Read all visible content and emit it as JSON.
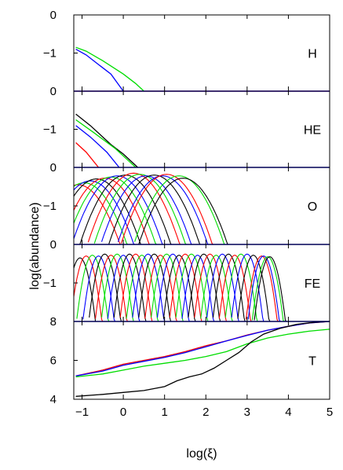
{
  "chart_data": {
    "type": "line",
    "xlabel": "log(ξ)",
    "ylabel": "log(abundance)",
    "xlim": [
      -1.2,
      5
    ],
    "xticks": [
      -1,
      0,
      1,
      2,
      3,
      4,
      5
    ],
    "xtick_labels": [
      "−1",
      "0",
      "1",
      "2",
      "3",
      "4",
      "5"
    ],
    "colors": {
      "red": "#ff0000",
      "green": "#00dd00",
      "blue": "#0000ff",
      "black": "#000000"
    },
    "series_colors": [
      "red",
      "green",
      "blue",
      "black"
    ],
    "panels": [
      {
        "label": "H",
        "ylim": [
          -2,
          0
        ],
        "ytick_labels": [
          {
            "v": 0,
            "t": "0"
          },
          {
            "v": -1,
            "t": "−1"
          }
        ],
        "series": [
          {
            "color": "red",
            "points": [
              [
                -1.2,
                -2.0
              ],
              [
                5,
                -2.0
              ]
            ]
          },
          {
            "color": "green",
            "points": [
              [
                -1.15,
                -0.85
              ],
              [
                -0.9,
                -0.95
              ],
              [
                -0.5,
                -1.2
              ],
              [
                0,
                -1.55
              ],
              [
                0.3,
                -1.8
              ],
              [
                0.5,
                -2.0
              ]
            ]
          },
          {
            "color": "blue",
            "points": [
              [
                -1.15,
                -0.9
              ],
              [
                -0.9,
                -1.05
              ],
              [
                -0.6,
                -1.3
              ],
              [
                -0.3,
                -1.55
              ],
              [
                0,
                -2.0
              ]
            ]
          }
        ]
      },
      {
        "label": "HE",
        "ylim": [
          -2,
          0
        ],
        "ytick_labels": [
          {
            "v": 0,
            "t": "0"
          },
          {
            "v": -1,
            "t": "−1"
          }
        ],
        "series": [
          {
            "color": "black",
            "points": [
              [
                -1.15,
                -0.6
              ],
              [
                -0.8,
                -0.9
              ],
              [
                -0.3,
                -1.4
              ],
              [
                0,
                -1.65
              ],
              [
                0.35,
                -2.0
              ]
            ]
          },
          {
            "color": "green",
            "points": [
              [
                -1.15,
                -0.75
              ],
              [
                -0.7,
                -1.1
              ],
              [
                -0.2,
                -1.5
              ],
              [
                0.1,
                -1.8
              ],
              [
                0.3,
                -2.0
              ]
            ]
          },
          {
            "color": "blue",
            "points": [
              [
                -1.15,
                -0.9
              ],
              [
                -0.8,
                -1.2
              ],
              [
                -0.4,
                -1.6
              ],
              [
                -0.1,
                -2.0
              ]
            ]
          },
          {
            "color": "red",
            "points": [
              [
                -1.15,
                -1.35
              ],
              [
                -0.9,
                -1.6
              ],
              [
                -0.6,
                -2.0
              ]
            ]
          }
        ]
      },
      {
        "label": "O",
        "ylim": [
          -2,
          0
        ],
        "ytick_labels": [
          {
            "v": 0,
            "t": "0"
          },
          {
            "v": -1,
            "t": "−1"
          }
        ],
        "curves": {
          "type": "gaussian",
          "floor": -2,
          "widths": [
            0.9,
            0.9
          ],
          "items": [
            {
              "c": -1.1,
              "peak": -0.45,
              "color": "red"
            },
            {
              "c": -0.95,
              "peak": -0.4,
              "color": "green"
            },
            {
              "c": -0.8,
              "peak": -0.35,
              "color": "blue"
            },
            {
              "c": -0.65,
              "peak": -0.3,
              "color": "black"
            },
            {
              "c": -0.45,
              "peak": -0.28,
              "color": "red"
            },
            {
              "c": -0.3,
              "peak": -0.25,
              "color": "green"
            },
            {
              "c": -0.15,
              "peak": -0.22,
              "color": "blue"
            },
            {
              "c": 0.05,
              "peak": -0.2,
              "color": "black"
            },
            {
              "c": 0.25,
              "peak": -0.15,
              "color": "red"
            },
            {
              "c": 0.4,
              "peak": -0.18,
              "color": "green"
            },
            {
              "c": 0.55,
              "peak": -0.22,
              "color": "blue"
            },
            {
              "c": 0.75,
              "peak": -0.2,
              "color": "black"
            },
            {
              "c": 0.95,
              "peak": -0.22,
              "color": "blue"
            },
            {
              "c": 1.05,
              "peak": -0.18,
              "color": "red"
            },
            {
              "c": 1.35,
              "peak": -0.22,
              "color": "green"
            },
            {
              "c": 1.45,
              "peak": -0.28,
              "color": "black"
            }
          ]
        }
      },
      {
        "label": "FE",
        "ylim": [
          -2,
          0
        ],
        "ytick_labels": [
          {
            "v": 0,
            "t": "0"
          },
          {
            "v": -1,
            "t": "−1"
          }
        ],
        "curves": {
          "type": "gaussian",
          "floor": -2,
          "widths": [
            0.32,
            0.32
          ],
          "items": [
            {
              "c": -1.05,
              "peak": -0.35,
              "color": "black"
            },
            {
              "c": -0.9,
              "peak": -0.3,
              "color": "red"
            },
            {
              "c": -0.75,
              "peak": -0.28,
              "color": "green"
            },
            {
              "c": -0.6,
              "peak": -0.3,
              "color": "blue"
            },
            {
              "c": -0.45,
              "peak": -0.25,
              "color": "black"
            },
            {
              "c": -0.3,
              "peak": -0.28,
              "color": "red"
            },
            {
              "c": -0.15,
              "peak": -0.25,
              "color": "green"
            },
            {
              "c": 0.0,
              "peak": -0.28,
              "color": "blue"
            },
            {
              "c": 0.15,
              "peak": -0.25,
              "color": "black"
            },
            {
              "c": 0.3,
              "peak": -0.25,
              "color": "red"
            },
            {
              "c": 0.45,
              "peak": -0.28,
              "color": "green"
            },
            {
              "c": 0.6,
              "peak": -0.25,
              "color": "blue"
            },
            {
              "c": 0.75,
              "peak": -0.25,
              "color": "black"
            },
            {
              "c": 0.9,
              "peak": -0.28,
              "color": "red"
            },
            {
              "c": 1.05,
              "peak": -0.25,
              "color": "green"
            },
            {
              "c": 1.2,
              "peak": -0.25,
              "color": "blue"
            },
            {
              "c": 1.35,
              "peak": -0.28,
              "color": "black"
            },
            {
              "c": 1.5,
              "peak": -0.25,
              "color": "red"
            },
            {
              "c": 1.65,
              "peak": -0.25,
              "color": "green"
            },
            {
              "c": 1.8,
              "peak": -0.28,
              "color": "blue"
            },
            {
              "c": 1.95,
              "peak": -0.25,
              "color": "black"
            },
            {
              "c": 2.1,
              "peak": -0.25,
              "color": "red"
            },
            {
              "c": 2.25,
              "peak": -0.28,
              "color": "green"
            },
            {
              "c": 2.4,
              "peak": -0.25,
              "color": "blue"
            },
            {
              "c": 2.55,
              "peak": -0.25,
              "color": "black"
            },
            {
              "c": 2.7,
              "peak": -0.28,
              "color": "red"
            },
            {
              "c": 2.85,
              "peak": -0.25,
              "color": "green"
            },
            {
              "c": 3.0,
              "peak": -0.25,
              "color": "blue"
            },
            {
              "c": 3.15,
              "peak": -0.28,
              "color": "black"
            },
            {
              "c": 3.35,
              "peak": -0.3,
              "color": "red"
            },
            {
              "c": 3.4,
              "peak": -0.3,
              "color": "blue"
            },
            {
              "c": 3.5,
              "peak": -0.32,
              "color": "green"
            },
            {
              "c": 3.55,
              "peak": -0.32,
              "color": "black"
            }
          ]
        }
      },
      {
        "label": "T",
        "ylim": [
          4,
          8
        ],
        "ytick_labels": [
          {
            "v": 8,
            "t": "8"
          },
          {
            "v": 6,
            "t": "6"
          },
          {
            "v": 4,
            "t": "4"
          }
        ],
        "series": [
          {
            "color": "red",
            "points": [
              [
                -1.15,
                5.2
              ],
              [
                -0.5,
                5.5
              ],
              [
                0,
                5.8
              ],
              [
                0.5,
                6.0
              ],
              [
                1,
                6.2
              ],
              [
                1.5,
                6.45
              ],
              [
                2,
                6.75
              ],
              [
                2.5,
                7.0
              ],
              [
                3,
                7.3
              ],
              [
                3.5,
                7.55
              ],
              [
                4,
                7.75
              ],
              [
                4.5,
                7.92
              ],
              [
                5,
                8.0
              ]
            ]
          },
          {
            "color": "blue",
            "points": [
              [
                -1.15,
                5.2
              ],
              [
                -0.5,
                5.45
              ],
              [
                0,
                5.75
              ],
              [
                0.5,
                5.95
              ],
              [
                1,
                6.15
              ],
              [
                1.5,
                6.4
              ],
              [
                2,
                6.7
              ],
              [
                2.5,
                7.0
              ],
              [
                3,
                7.28
              ],
              [
                3.5,
                7.55
              ],
              [
                4,
                7.75
              ],
              [
                4.5,
                7.92
              ],
              [
                5,
                8.0
              ]
            ]
          },
          {
            "color": "green",
            "points": [
              [
                -1.15,
                5.15
              ],
              [
                -0.5,
                5.3
              ],
              [
                0,
                5.5
              ],
              [
                0.5,
                5.7
              ],
              [
                1,
                5.85
              ],
              [
                1.5,
                6.0
              ],
              [
                2,
                6.2
              ],
              [
                2.5,
                6.45
              ],
              [
                3,
                6.85
              ],
              [
                3.5,
                7.15
              ],
              [
                4,
                7.35
              ],
              [
                4.5,
                7.5
              ],
              [
                5,
                7.6
              ]
            ]
          },
          {
            "color": "black",
            "points": [
              [
                -1.15,
                4.15
              ],
              [
                -0.5,
                4.25
              ],
              [
                0,
                4.35
              ],
              [
                0.5,
                4.45
              ],
              [
                1,
                4.65
              ],
              [
                1.3,
                4.95
              ],
              [
                1.6,
                5.15
              ],
              [
                1.9,
                5.3
              ],
              [
                2.2,
                5.6
              ],
              [
                2.5,
                6.0
              ],
              [
                2.8,
                6.4
              ],
              [
                3.1,
                6.95
              ],
              [
                3.4,
                7.35
              ],
              [
                3.8,
                7.65
              ],
              [
                4.2,
                7.85
              ],
              [
                4.6,
                7.95
              ],
              [
                5,
                8.0
              ]
            ]
          }
        ]
      }
    ]
  }
}
